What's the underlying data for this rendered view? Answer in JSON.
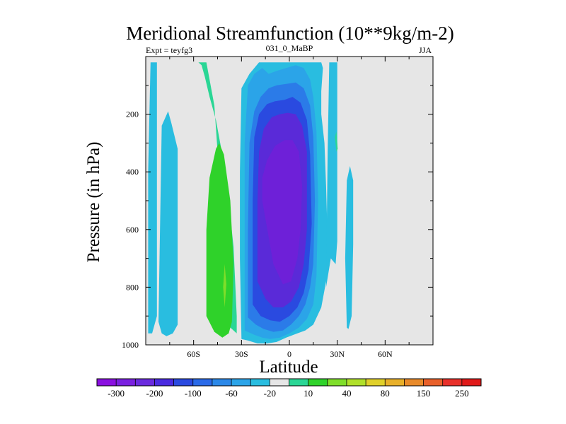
{
  "chart_data": {
    "type": "heatmap",
    "title": "Meridional Streamfunction (10**9kg/m-2)",
    "subtitle_left": "Expt = teyfg3",
    "subtitle_center": "031_0_MaBP",
    "subtitle_right": "JJA",
    "xlabel": "Latitude",
    "ylabel": "Pressure (in hPa)",
    "xlim": [
      -90,
      90
    ],
    "ylim": [
      0,
      1000
    ],
    "y_inverted": true,
    "x_ticks": [
      {
        "value": -60,
        "label": "60S"
      },
      {
        "value": -30,
        "label": "30S"
      },
      {
        "value": 0,
        "label": "0"
      },
      {
        "value": 30,
        "label": "30N"
      },
      {
        "value": 60,
        "label": "60N"
      }
    ],
    "y_ticks": [
      {
        "value": 200,
        "label": "200"
      },
      {
        "value": 400,
        "label": "400"
      },
      {
        "value": 600,
        "label": "600"
      },
      {
        "value": 800,
        "label": "800"
      },
      {
        "value": 1000,
        "label": "1000"
      }
    ],
    "background_color": "#e6e6e6",
    "regions": [
      {
        "color": "#29bde0",
        "x": [
          -88.5,
          -86,
          -83,
          -83,
          -87,
          -88.5
        ],
        "y": [
          960,
          960,
          900,
          20,
          20,
          400
        ]
      },
      {
        "color": "#29bde0",
        "x": [
          -82,
          -80,
          -77,
          -73,
          -70,
          -70,
          -74,
          -76,
          -80
        ],
        "y": [
          920,
          960,
          970,
          960,
          930,
          320,
          230,
          190,
          240
        ]
      },
      {
        "color": "#2ad695",
        "x": [
          -57,
          -52,
          -47,
          -45,
          -43,
          -41,
          -40,
          -37,
          -33,
          -33,
          -35,
          -39,
          -43,
          -46,
          -50,
          -53,
          -55
        ],
        "y": [
          20,
          20,
          170,
          330,
          520,
          700,
          860,
          940,
          960,
          900,
          660,
          450,
          310,
          220,
          140,
          70,
          30
        ]
      },
      {
        "color": "#2fd22a",
        "x": [
          -52,
          -47,
          -42,
          -38,
          -36,
          -35,
          -37,
          -41,
          -44,
          -46,
          -50,
          -52
        ],
        "y": [
          900,
          955,
          975,
          960,
          920,
          720,
          500,
          340,
          300,
          320,
          420,
          600
        ]
      },
      {
        "color": "#7fde2a",
        "x": [
          -41.5,
          -40.5,
          -39.5,
          -40.5
        ],
        "y": [
          800,
          720,
          790,
          870
        ]
      },
      {
        "color": "#29bde0",
        "x": [
          -30,
          -26,
          -20,
          -14,
          -8,
          -2,
          5,
          10,
          15,
          20,
          23,
          25,
          24,
          23,
          22,
          20,
          20,
          21,
          20,
          17,
          12,
          6,
          0,
          -8,
          -14,
          -19,
          -25,
          -30,
          -31,
          -31
        ],
        "y": [
          980,
          985,
          995,
          995,
          990,
          975,
          960,
          950,
          930,
          870,
          780,
          700,
          640,
          450,
          300,
          200,
          120,
          40,
          20,
          20,
          20,
          20,
          20,
          20,
          20,
          20,
          60,
          110,
          400,
          700
        ]
      },
      {
        "color": "#2ba4e8",
        "x": [
          -28,
          -22,
          -17,
          -12,
          -6,
          0,
          6,
          11,
          15,
          17,
          18,
          17,
          15,
          13,
          9,
          4,
          -2,
          -8,
          -13,
          -17,
          -22,
          -26,
          -28
        ],
        "y": [
          950,
          965,
          975,
          980,
          975,
          960,
          940,
          910,
          860,
          760,
          500,
          260,
          140,
          80,
          40,
          30,
          40,
          50,
          60,
          40,
          60,
          100,
          300
        ]
      },
      {
        "color": "#2b7be8",
        "x": [
          -26,
          -21,
          -16,
          -10,
          -4,
          1,
          6,
          10,
          13,
          15,
          16,
          15,
          13,
          9,
          4,
          -2,
          -8,
          -13,
          -18,
          -22,
          -25,
          -26
        ],
        "y": [
          905,
          930,
          945,
          955,
          950,
          930,
          900,
          860,
          800,
          720,
          500,
          280,
          170,
          110,
          90,
          95,
          100,
          110,
          140,
          190,
          300,
          600
        ]
      },
      {
        "color": "#2a4ae0",
        "x": [
          -23,
          -18,
          -12,
          -6,
          0,
          5,
          9,
          12,
          14,
          13,
          11,
          7,
          2,
          -3,
          -9,
          -14,
          -19,
          -22,
          -23
        ],
        "y": [
          860,
          900,
          915,
          920,
          900,
          870,
          820,
          740,
          580,
          340,
          220,
          160,
          140,
          150,
          155,
          165,
          200,
          280,
          500
        ]
      },
      {
        "color": "#5a2ad8",
        "x": [
          -20,
          -15,
          -10,
          -4,
          1,
          6,
          9,
          11,
          11,
          8,
          4,
          -1,
          -6,
          -11,
          -16,
          -19,
          -20
        ],
        "y": [
          780,
          840,
          870,
          870,
          850,
          800,
          720,
          600,
          330,
          240,
          200,
          195,
          200,
          210,
          250,
          330,
          500
        ]
      },
      {
        "color": "#6e20d8",
        "x": [
          -17,
          -10,
          -4,
          1,
          5,
          7,
          8,
          6,
          2,
          -3,
          -9,
          -14,
          -17
        ],
        "y": [
          500,
          720,
          790,
          780,
          700,
          600,
          450,
          330,
          290,
          290,
          310,
          360,
          420
        ]
      },
      {
        "color": "#29bde0",
        "x": [
          23,
          26,
          29,
          30,
          30,
          28,
          25,
          24
        ],
        "y": [
          800,
          700,
          720,
          640,
          20,
          20,
          20,
          330
        ]
      },
      {
        "color": "#2ad695",
        "x": [
          28.5,
          29.5,
          30.3,
          29.5
        ],
        "y": [
          280,
          330,
          320,
          260
        ]
      },
      {
        "color": "#29bde0",
        "x": [
          36,
          37,
          39,
          40,
          40,
          38,
          36,
          35
        ],
        "y": [
          940,
          945,
          900,
          650,
          430,
          380,
          430,
          700
        ]
      }
    ],
    "colorbar": {
      "colors": [
        "#8a10e0",
        "#7a20e0",
        "#6a2ade",
        "#4a2ae0",
        "#2a4ae0",
        "#2a6ae8",
        "#2b88e8",
        "#2ba4e8",
        "#29bde0",
        "#e6e6e6",
        "#2ad695",
        "#2fd22a",
        "#7fde2a",
        "#b0e02a",
        "#e0d02a",
        "#e8b02a",
        "#e88a2a",
        "#e8602a",
        "#e8302a",
        "#e01a1a"
      ],
      "labels": [
        "-300",
        "-200",
        "-100",
        "-60",
        "-20",
        "10",
        "40",
        "80",
        "150",
        "250"
      ],
      "label_boundaries": [
        1,
        3,
        5,
        7,
        9,
        11,
        13,
        15,
        17,
        19
      ]
    }
  }
}
